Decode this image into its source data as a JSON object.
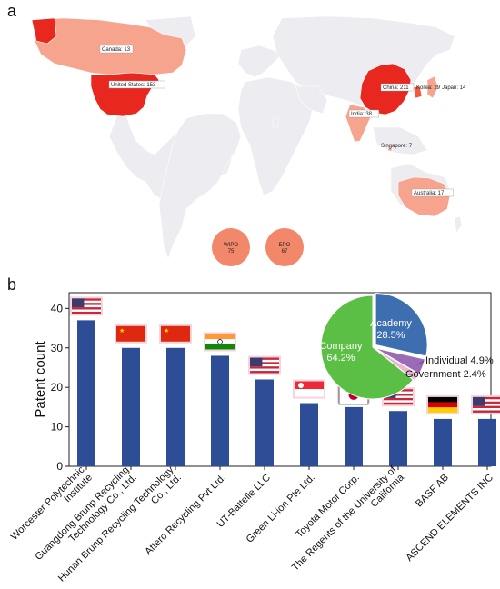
{
  "panel_a_label": "a",
  "panel_b_label": "b",
  "colors": {
    "land": "#ececf1",
    "high": "#e8281f",
    "mid": "#f25a3f",
    "low": "#f6a48e",
    "bubble": "#f3876a",
    "bar": "#2e4d97",
    "company": "#5cbf45",
    "academy": "#3d6fb0",
    "individual": "#9b6bb8",
    "government": "#e9b8cf"
  },
  "chart_data": [
    {
      "type": "map",
      "countries": [
        {
          "name": "Canada",
          "value": 13,
          "label": "Canada: 13"
        },
        {
          "name": "United States",
          "value": 153,
          "label": "United States: 153"
        },
        {
          "name": "China",
          "value": 211,
          "label": "China: 211"
        },
        {
          "name": "Korea",
          "value": 29,
          "label": "Korea: 29"
        },
        {
          "name": "Japan",
          "value": 14,
          "label": "Japan: 14"
        },
        {
          "name": "India",
          "value": 38,
          "label": "India: 38"
        },
        {
          "name": "Singapore",
          "value": 7,
          "label": "Singapore: 7"
        },
        {
          "name": "Australia",
          "value": 17,
          "label": "Australia: 17"
        }
      ],
      "offices": [
        {
          "name": "WIPO",
          "value": 75,
          "value_text": "75"
        },
        {
          "name": "EPO",
          "value": 67,
          "value_text": "67"
        }
      ]
    },
    {
      "type": "bar",
      "ylabel": "Patent count",
      "ylim": [
        0,
        44
      ],
      "yticks": [
        0,
        10,
        20,
        30,
        40
      ],
      "categories": [
        "Worcester Polytechnic Institute",
        "Guangdong Brunp Recycling Technology Co., Ltd.",
        "Hunan Brunp Recycling Technology Co., Ltd.",
        "Attero Recycling Pvt Ltd.",
        "UT-Battelle LLC",
        "Green Li-ion Pte Ltd.",
        "Toyota Motor Corp.",
        "The Regents of the University of California",
        "BASF AB",
        "ASCEND ELEMENTS INC"
      ],
      "category_lines": [
        [
          "Worcester Polytechnic",
          "Institute"
        ],
        [
          "Guangdong Brunp Recycling",
          "Technology Co., Ltd."
        ],
        [
          "Hunan Brunp Recycling Technology",
          "Co., Ltd."
        ],
        [
          "Attero Recycling Pvt Ltd."
        ],
        [
          "UT-Battelle LLC"
        ],
        [
          "Green Li-ion Pte Ltd."
        ],
        [
          "Toyota Motor Corp."
        ],
        [
          "The Regents of the University of",
          "California"
        ],
        [
          "BASF AB"
        ],
        [
          "ASCEND ELEMENTS INC"
        ]
      ],
      "values": [
        37,
        30,
        30,
        28,
        22,
        16,
        15,
        14,
        12,
        12
      ],
      "flags": [
        "us-flag",
        "china-flag",
        "china-flag",
        "india-flag",
        "us-flag",
        "singapore-flag",
        "japan-flag",
        "us-flag",
        "germany-flag",
        "us-flag"
      ],
      "grid": false
    },
    {
      "type": "pie",
      "slices": [
        {
          "name": "Company",
          "value": 64.2,
          "value_text": "64.2%"
        },
        {
          "name": "Academy",
          "value": 28.5,
          "value_text": "28.5%"
        },
        {
          "name": "Individual",
          "value": 4.9,
          "value_text": "4.9%"
        },
        {
          "name": "Government",
          "value": 2.4,
          "value_text": "2.4%"
        }
      ]
    }
  ]
}
